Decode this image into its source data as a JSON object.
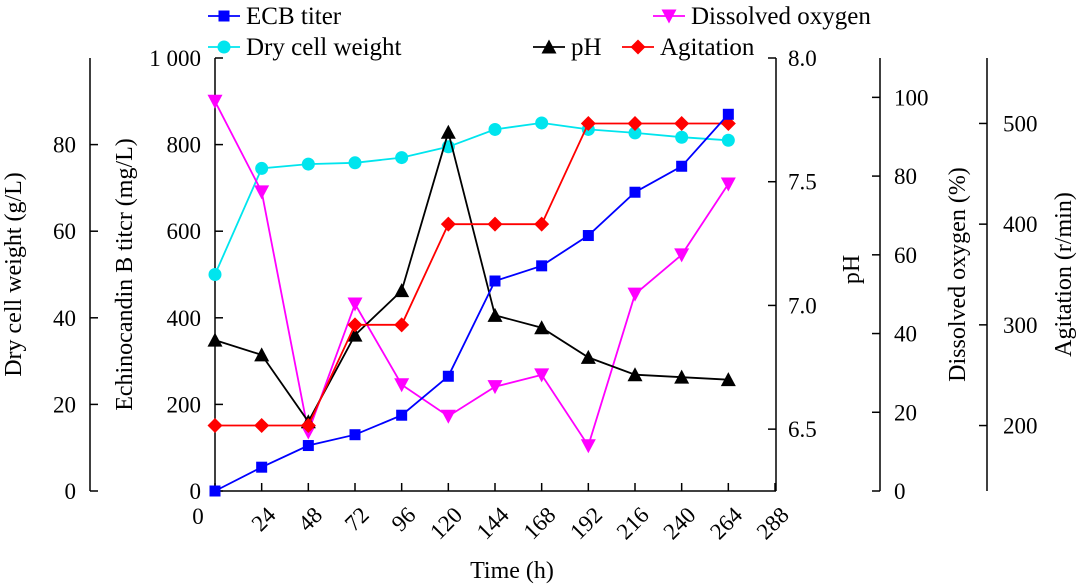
{
  "chart_data": {
    "type": "line",
    "xlabel": "Time (h)",
    "x_ticks": [
      "0",
      "24",
      "48",
      "72",
      "96",
      "120",
      "144",
      "168",
      "192",
      "216",
      "240",
      "264",
      "288"
    ],
    "xlim": [
      0,
      300
    ],
    "axes": {
      "dcw": {
        "label": "Dry cell weight (g/L)",
        "ylim": [
          0,
          100
        ],
        "ticks": [
          "0",
          "20",
          "40",
          "60",
          "80"
        ]
      },
      "titer": {
        "label": "Echinocandin B titcr (mg/L)",
        "ylim": [
          0,
          1000
        ],
        "ticks": [
          "0",
          "200",
          "400",
          "600",
          "800",
          "1 000"
        ]
      },
      "ph": {
        "label": "pH",
        "ylim": [
          6.25,
          8.0
        ],
        "ticks": [
          "6.5",
          "7.0",
          "7.5",
          "8.0"
        ]
      },
      "do": {
        "label": "Dissolved oxygen (%)",
        "ylim": [
          0,
          110
        ],
        "ticks": [
          "0",
          "20",
          "40",
          "60",
          "80",
          "100"
        ]
      },
      "agit": {
        "label": "Agitation (r/min)",
        "ylim": [
          135,
          565
        ],
        "ticks": [
          "200",
          "300",
          "400",
          "500"
        ]
      }
    },
    "series": [
      {
        "name": "ECB titer",
        "axis": "titer",
        "color": "#0000ff",
        "marker": "square",
        "x": [
          0,
          24,
          48,
          72,
          96,
          120,
          144,
          168,
          192,
          216,
          240,
          264
        ],
        "y": [
          0,
          55,
          105,
          130,
          175,
          265,
          485,
          520,
          590,
          690,
          750,
          870
        ]
      },
      {
        "name": "Dry cell weight",
        "axis": "dcw",
        "color": "#00e5ee",
        "marker": "circle",
        "x": [
          0,
          24,
          48,
          72,
          96,
          120,
          144,
          168,
          192,
          216,
          240,
          264
        ],
        "y": [
          50,
          74.5,
          75.5,
          75.8,
          77,
          79.5,
          83.5,
          85,
          83.5,
          82.7,
          81.7,
          81
        ]
      },
      {
        "name": "Dissolved oxygen",
        "axis": "do",
        "color": "#ff00ff",
        "marker": "triangle-down",
        "x": [
          0,
          24,
          48,
          72,
          96,
          120,
          144,
          168,
          192,
          216,
          240,
          264
        ],
        "y": [
          99,
          76,
          15,
          47.5,
          27,
          19,
          26.5,
          29.5,
          11.5,
          50,
          60,
          78
        ]
      },
      {
        "name": "pH",
        "axis": "ph",
        "color": "#000000",
        "marker": "triangle",
        "x": [
          0,
          24,
          48,
          72,
          96,
          120,
          144,
          168,
          192,
          216,
          240,
          264
        ],
        "y": [
          6.86,
          6.8,
          6.53,
          6.88,
          7.06,
          7.7,
          6.96,
          6.91,
          6.79,
          6.72,
          6.71,
          6.7
        ]
      },
      {
        "name": "Agitation",
        "axis": "agit",
        "color": "#ff0000",
        "marker": "diamond",
        "x": [
          0,
          24,
          48,
          72,
          96,
          120,
          144,
          168,
          192,
          216,
          240,
          264
        ],
        "y": [
          200,
          200,
          200,
          300,
          300,
          400,
          400,
          400,
          500,
          500,
          500,
          500
        ]
      }
    ],
    "legend_order": [
      "ECB titer",
      "Dry cell weight",
      "Dissolved oxygen",
      "pH",
      "Agitation"
    ]
  }
}
